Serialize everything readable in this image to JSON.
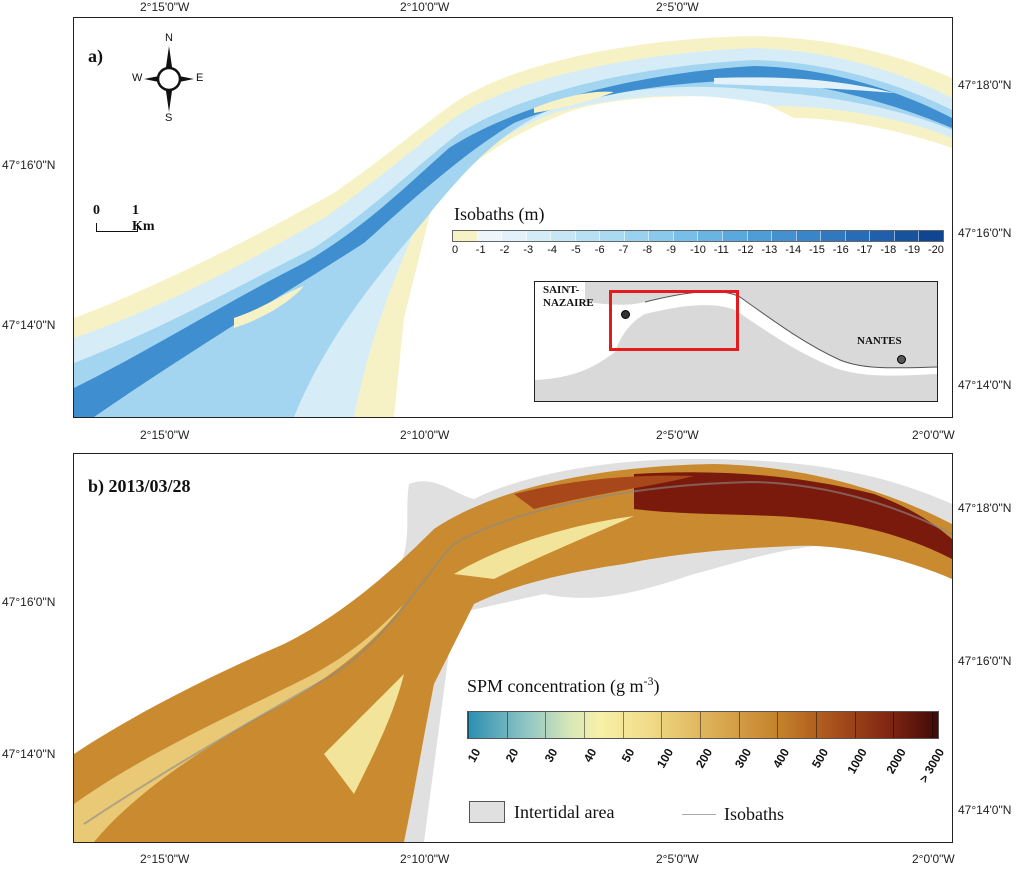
{
  "panel_a": {
    "label": "a)",
    "legend_title": "Isobaths (m)",
    "legend_ticks": [
      "0",
      "-1",
      "-2",
      "-3",
      "-4",
      "-5",
      "-6",
      "-7",
      "-8",
      "-9",
      "-10",
      "-11",
      "-12",
      "-13",
      "-14",
      "-15",
      "-16",
      "-17",
      "-18",
      "-19",
      "-20"
    ],
    "legend_colors": [
      "#f7f2c6",
      "#eef6fb",
      "#e2f1fa",
      "#d4ecf8",
      "#c6e6f6",
      "#b8e0f4",
      "#a9daf2",
      "#99d2f0",
      "#88c9ec",
      "#77bfe8",
      "#68b4e3",
      "#5aa9de",
      "#4e9dd8",
      "#4391d1",
      "#3985c9",
      "#3079c0",
      "#276cb6",
      "#1f5fab",
      "#17529f",
      "#0f4592"
    ],
    "compass": {
      "n": "N",
      "s": "S",
      "e": "E",
      "w": "W"
    },
    "scale": {
      "zero": "0",
      "label": "1 Km"
    },
    "inset": {
      "city1_line1": "SAINT-",
      "city1_line2": "NAZAIRE",
      "city2": "NANTES"
    }
  },
  "panel_b": {
    "label": "b) 2013/03/28",
    "legend_title": "SPM concentration (g m",
    "legend_title_sup": "-3",
    "legend_title_end": ")",
    "legend_ticks": [
      "10",
      "20",
      "30",
      "40",
      "50",
      "100",
      "200",
      "300",
      "400",
      "500",
      "1000",
      "2000",
      "> 3000"
    ],
    "legend_key_intertidal": "Intertidal area",
    "legend_key_isobaths": "Isobaths"
  },
  "axes": {
    "top_a": [
      "2°15'0\"W",
      "2°10'0\"W",
      "2°5'0\"W"
    ],
    "bottom_a": [
      "2°15'0\"W",
      "2°10'0\"W",
      "2°5'0\"W",
      "2°0'0\"W"
    ],
    "left_a": [
      "47°16'0\"N",
      "47°14'0\"N"
    ],
    "right_a": [
      "47°18'0\"N",
      "47°16'0\"N",
      "47°14'0\"N"
    ],
    "bottom_b": [
      "2°15'0\"W",
      "2°10'0\"W",
      "2°5'0\"W",
      "2°0'0\"W"
    ],
    "left_b": [
      "47°16'0\"N",
      "47°14'0\"N"
    ],
    "right_b": [
      "47°18'0\"N",
      "47°16'0\"N",
      "47°14'0\"N"
    ]
  },
  "colors": {
    "intertidal": "#f7f2c6",
    "deep_channel": "#2f7fc6",
    "land_grey": "#e0e0e0",
    "spm_dark": "#7a1a0c",
    "spm_mid": "#c7862a",
    "spm_light": "#f2e49a",
    "inset_box": "#e41a1c"
  }
}
